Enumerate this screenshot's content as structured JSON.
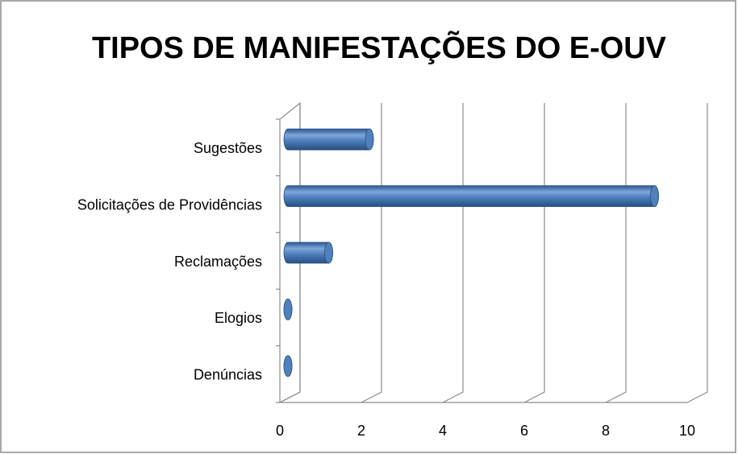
{
  "chart_data": {
    "type": "bar",
    "orientation": "horizontal",
    "title": "TIPOS DE MANIFESTAÇÕES DO E-OUV",
    "categories": [
      "Sugestões",
      "Solicitações de Providências",
      "Reclamações",
      "Elogios",
      "Denúncias"
    ],
    "values": [
      2,
      9,
      1,
      0,
      0
    ],
    "color": "#4f81bd",
    "xlim": [
      0,
      10
    ],
    "xticks": [
      0,
      2,
      4,
      6,
      8,
      10
    ],
    "grid": true
  }
}
